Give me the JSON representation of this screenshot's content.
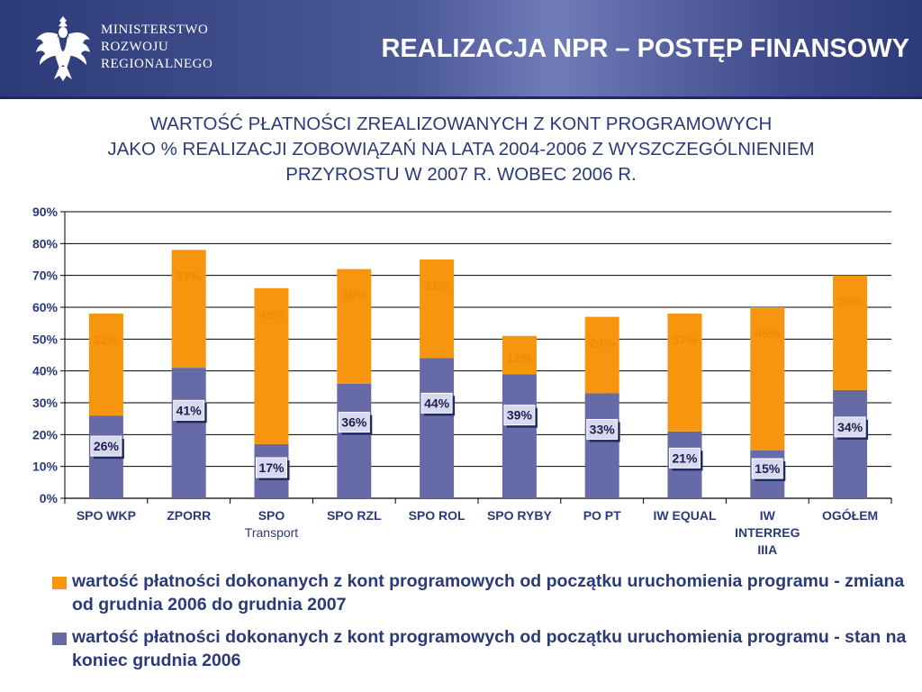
{
  "header": {
    "logo": "polish-eagle-emblem",
    "ministry_lines": [
      "MINISTERSTWO",
      "ROZWOJU",
      "REGIONALNEGO"
    ],
    "title": "REALIZACJA NPR – POSTĘP FINANSOWY"
  },
  "subtitle": {
    "line1": "WARTOŚĆ PŁATNOŚCI ZREALIZOWANYCH Z KONT PROGRAMOWYCH",
    "line2": "JAKO % REALIZACJI ZOBOWIĄZAŃ NA LATA 2004-2006 Z WYSZCZEGÓLNIENIEM",
    "line3": "PRZYROSTU W 2007 R. WOBEC 2006 R."
  },
  "colors": {
    "header_bg": "#3f4b8a",
    "title_text": "#2b3a78",
    "orange": "#f7950e",
    "orange_label": "#f08a00",
    "purple": "#666aa6",
    "label_box": "#d8d8f0"
  },
  "chart_data": {
    "type": "bar",
    "stacked": true,
    "categories": [
      "SPO WKP",
      "ZPORR",
      "SPO Transport",
      "SPO RZL",
      "SPO ROL",
      "SPO RYBY",
      "PO PT",
      "IW EQUAL",
      "IW INTERREG IIIA",
      "OGÓŁEM"
    ],
    "category_lines": [
      [
        "SPO WKP"
      ],
      [
        "ZPORR"
      ],
      [
        "SPO",
        "Transport"
      ],
      [
        "SPO RZL"
      ],
      [
        "SPO ROL"
      ],
      [
        "SPO RYBY"
      ],
      [
        "PO PT"
      ],
      [
        "IW EQUAL"
      ],
      [
        "IW",
        "INTERREG",
        "IIIA"
      ],
      [
        "OGÓŁEM"
      ]
    ],
    "series": [
      {
        "name": "wartość płatności dokonanych z kont programowych od początku uruchomienia programu - stan na koniec grudnia 2006",
        "color": "#666aa6",
        "values": [
          26,
          41,
          17,
          36,
          44,
          39,
          33,
          21,
          15,
          34
        ],
        "labels": [
          "26%",
          "41%",
          "17%",
          "36%",
          "44%",
          "39%",
          "33%",
          "21%",
          "15%",
          "34%"
        ]
      },
      {
        "name": "wartość płatności dokonanych z kont programowych od początku uruchomienia programu - zmiana od grudnia 2006 do grudnia 2007",
        "color": "#f7950e",
        "values": [
          32,
          37,
          49,
          36,
          31,
          12,
          24,
          37,
          45,
          36
        ],
        "labels": [
          "32%",
          "37%",
          "49%",
          "36%",
          "31%",
          "12%",
          "24%",
          "37%",
          "45%",
          "36%"
        ]
      }
    ],
    "y_ticks": [
      "0%",
      "10%",
      "20%",
      "30%",
      "40%",
      "50%",
      "60%",
      "70%",
      "80%",
      "90%"
    ],
    "ylim": [
      0,
      90
    ],
    "grid": true,
    "legend_position": "bottom"
  },
  "legend": {
    "item_orange": "wartość płatności dokonanych z kont programowych od początku uruchomienia programu  - zmiana od grudnia 2006 do grudnia 2007",
    "item_purple": "wartość płatności dokonanych z kont programowych od początku uruchomienia programu  - stan na koniec grudnia 2006"
  }
}
